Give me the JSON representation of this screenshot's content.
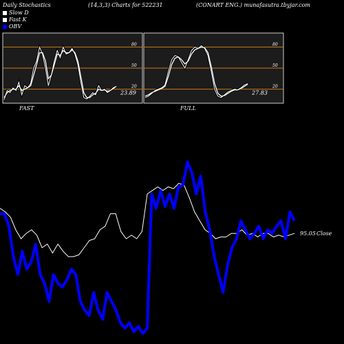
{
  "header": {
    "left": "Daily Stochastics",
    "center": "(14,3,3) Charts for 522231",
    "right": "(CONART ENG.) munafasutra.tbyjar.com"
  },
  "legend": [
    {
      "label": "Slow  D",
      "color": "#ffffff"
    },
    {
      "label": "Fast K",
      "color": "#ffffff"
    },
    {
      "label": "OBV",
      "color": "#0000ff"
    }
  ],
  "chart_data": [
    {
      "type": "line",
      "name_label": "FAST",
      "levels": [
        "80",
        "50",
        "20"
      ],
      "last_value_label": "23.89",
      "ylim": [
        0,
        100
      ],
      "series": [
        {
          "values": [
            5,
            18,
            15,
            22,
            18,
            30,
            12,
            25,
            22,
            28,
            50,
            60,
            80,
            70,
            50,
            25,
            40,
            60,
            75,
            65,
            80,
            70,
            72,
            78,
            70,
            55,
            30,
            8,
            6,
            10,
            15,
            12,
            25,
            18,
            20,
            15,
            18,
            22,
            24
          ]
        },
        {
          "values": [
            8,
            15,
            18,
            20,
            20,
            25,
            18,
            20,
            22,
            25,
            40,
            55,
            72,
            72,
            60,
            35,
            40,
            55,
            70,
            68,
            75,
            72,
            72,
            76,
            72,
            60,
            38,
            15,
            8,
            8,
            12,
            14,
            20,
            18,
            19,
            17,
            18,
            21,
            24
          ]
        }
      ]
    },
    {
      "type": "line",
      "name_label": "FULL",
      "levels": [
        "80",
        "50",
        "20"
      ],
      "last_value_label": "27.83",
      "ylim": [
        0,
        100
      ],
      "series": [
        {
          "values": [
            8,
            10,
            14,
            18,
            20,
            22,
            26,
            45,
            62,
            68,
            66,
            58,
            50,
            62,
            75,
            80,
            78,
            82,
            78,
            68,
            45,
            20,
            10,
            8,
            12,
            16,
            18,
            20,
            19,
            22,
            26,
            28
          ]
        },
        {
          "values": [
            10,
            12,
            15,
            17,
            19,
            21,
            24,
            38,
            55,
            64,
            66,
            62,
            56,
            60,
            70,
            76,
            78,
            80,
            79,
            72,
            52,
            28,
            14,
            10,
            11,
            14,
            17,
            19,
            19,
            21,
            24,
            27
          ]
        }
      ]
    },
    {
      "type": "line",
      "close_label": "95.05",
      "close_suffix": "Close",
      "ylim": [
        0,
        100
      ],
      "series": [
        {
          "values": [
            72,
            70,
            67,
            60,
            55,
            58,
            60,
            57,
            50,
            52,
            47,
            52,
            48,
            45,
            45,
            46,
            50,
            54,
            55,
            60,
            62,
            69,
            69,
            59,
            55,
            57,
            55,
            59,
            80,
            82,
            84,
            82,
            84,
            83,
            86,
            85,
            78,
            70,
            65,
            60,
            58,
            55,
            56,
            56,
            58,
            58,
            60,
            57,
            58,
            56,
            58,
            58,
            56,
            57,
            56,
            57,
            58
          ]
        },
        {
          "values": [
            69,
            69,
            62,
            45,
            35,
            48,
            38,
            42,
            52,
            35,
            30,
            20,
            35,
            30,
            28,
            32,
            38,
            35,
            20,
            15,
            12,
            25,
            15,
            10,
            25,
            20,
            15,
            8,
            5,
            8,
            3,
            6,
            2,
            5,
            80,
            72,
            82,
            73,
            80,
            72,
            84,
            85,
            98,
            92,
            80,
            90,
            70,
            60,
            45,
            35,
            25,
            40,
            50,
            55,
            65,
            60,
            55,
            58,
            62,
            55,
            60,
            58,
            62,
            65,
            55,
            70,
            65
          ]
        }
      ]
    }
  ]
}
